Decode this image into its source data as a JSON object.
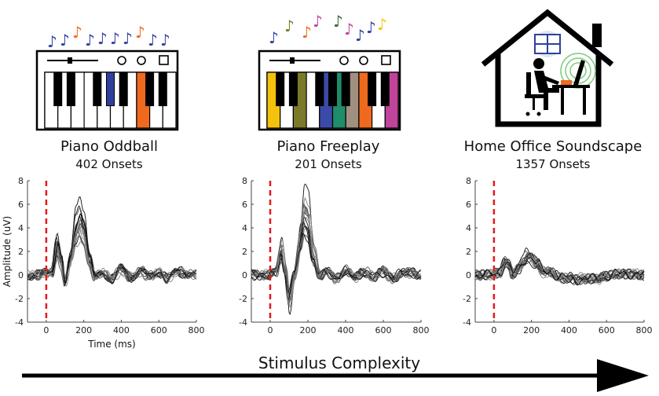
{
  "panels": [
    {
      "title": "Piano Oddball",
      "subtitle": "402 Onsets",
      "icon": "piano-keyboard-icon"
    },
    {
      "title": "Piano Freeplay",
      "subtitle": "201 Onsets",
      "icon": "piano-keyboard-colored-icon"
    },
    {
      "title": "Home Office Soundscape",
      "subtitle": "1357 Onsets",
      "icon": "home-office-icon"
    }
  ],
  "bottom_arrow": {
    "label": "Stimulus Complexity"
  },
  "colors": {
    "trace": "#222222",
    "onset_line": "#e31a1c",
    "piano_oddball_keys": [
      "#2f3f9e",
      "#ef6a1f"
    ],
    "piano_freeplay_keys": [
      "#f4c20d",
      "#7a7a2a",
      "#3a6b35",
      "#3b4aa8",
      "#1f8c6a",
      "#a09080",
      "#ef6a1f",
      "#c0449a"
    ]
  },
  "chart_data": [
    {
      "type": "line",
      "xlabel": "Time (ms)",
      "ylabel": "Amplitude (uV)",
      "xlim": [
        -100,
        800
      ],
      "ylim": [
        -4,
        8
      ],
      "xticks": [
        0,
        200,
        400,
        600,
        800
      ],
      "yticks": [
        -4,
        -2,
        0,
        2,
        4,
        6,
        8
      ],
      "onset_marker_x": 0,
      "n_traces": 16,
      "mean_waveform": {
        "x": [
          -100,
          -50,
          0,
          30,
          60,
          80,
          100,
          130,
          160,
          180,
          200,
          230,
          260,
          300,
          350,
          400,
          450,
          500,
          550,
          600,
          650,
          700,
          750,
          800
        ],
        "y": [
          0,
          0,
          0.1,
          0.3,
          3.0,
          1.5,
          -0.8,
          1.5,
          4.5,
          5.5,
          4.5,
          1.5,
          -0.3,
          0.2,
          -0.3,
          0.5,
          -0.2,
          0.4,
          -0.2,
          0.3,
          -0.3,
          0.3,
          0.2,
          0
        ]
      }
    },
    {
      "type": "line",
      "xlabel": "",
      "ylabel": "",
      "xlim": [
        -100,
        800
      ],
      "ylim": [
        -4,
        8
      ],
      "xticks": [
        0,
        200,
        400,
        600,
        800
      ],
      "yticks": [
        -4,
        -2,
        0,
        2,
        4,
        6,
        8
      ],
      "onset_marker_x": 0,
      "n_traces": 16,
      "mean_waveform": {
        "x": [
          -100,
          -50,
          0,
          30,
          60,
          80,
          100,
          130,
          160,
          180,
          200,
          230,
          260,
          300,
          350,
          400,
          450,
          500,
          550,
          600,
          650,
          700,
          750,
          800
        ],
        "y": [
          0,
          0,
          0.1,
          0.3,
          2.5,
          0.5,
          -2.5,
          0,
          3.5,
          6.0,
          5.5,
          2.0,
          0,
          0.3,
          -0.4,
          0.5,
          -0.3,
          0.3,
          -0.2,
          0.3,
          -0.3,
          0.2,
          0.2,
          0
        ]
      }
    },
    {
      "type": "line",
      "xlabel": "",
      "ylabel": "",
      "xlim": [
        -100,
        800
      ],
      "ylim": [
        -4,
        8
      ],
      "xticks": [
        0,
        200,
        400,
        600,
        800
      ],
      "yticks": [
        -4,
        -2,
        0,
        2,
        4,
        6,
        8
      ],
      "onset_marker_x": 0,
      "n_traces": 16,
      "mean_waveform": {
        "x": [
          -100,
          -50,
          0,
          30,
          60,
          80,
          100,
          130,
          160,
          180,
          200,
          230,
          260,
          300,
          350,
          400,
          450,
          500,
          550,
          600,
          650,
          700,
          750,
          800
        ],
        "y": [
          0,
          0,
          0.05,
          0.2,
          1.2,
          0.9,
          0.1,
          0.6,
          1.3,
          1.7,
          1.6,
          1.0,
          0.3,
          0.2,
          -0.2,
          -0.3,
          -0.4,
          -0.3,
          -0.4,
          -0.1,
          0.1,
          0.1,
          0.1,
          0
        ]
      }
    }
  ]
}
